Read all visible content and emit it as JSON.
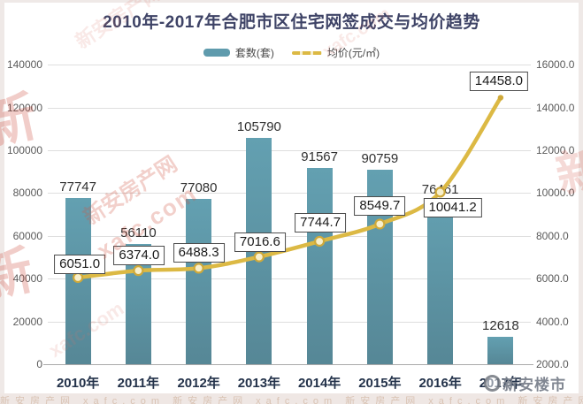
{
  "chart_data": {
    "type": "bar",
    "combo": "bar+line",
    "title": "2010年-2017年合肥市区住宅网签成交与均价趋势",
    "categories": [
      "2010年",
      "2011年",
      "2012年",
      "2013年",
      "2014年",
      "2015年",
      "2016年",
      "2017年"
    ],
    "series": [
      {
        "name": "套数(套)",
        "type": "bar",
        "axis": "left",
        "values": [
          77747,
          56110,
          77080,
          105790,
          91567,
          90759,
          76461,
          12618
        ],
        "labels": [
          "77747",
          "56110",
          "77080",
          "105790",
          "91567",
          "90759",
          "76461",
          "12618"
        ],
        "color": "#5f9bad"
      },
      {
        "name": "均价(元/㎡)",
        "type": "line",
        "axis": "right",
        "values": [
          6051.0,
          6374.0,
          6488.3,
          7016.6,
          7744.7,
          8549.7,
          10041.2,
          14458.0
        ],
        "labels": [
          "6051.0",
          "6374.0",
          "6488.3",
          "7016.6",
          "7744.7",
          "8549.7",
          "10041.2",
          "14458.0"
        ],
        "color": "#dcb944"
      }
    ],
    "left_axis": {
      "min": 0,
      "max": 140000,
      "step": 20000,
      "ticks": [
        "0",
        "20000",
        "40000",
        "60000",
        "80000",
        "100000",
        "120000",
        "140000"
      ]
    },
    "right_axis": {
      "min": 2000,
      "max": 16000,
      "step": 2000,
      "ticks": [
        "2000.0",
        "4000.0",
        "6000.0",
        "8000.0",
        "10000.0",
        "12000.0",
        "14000.0",
        "16000.0"
      ]
    },
    "legend_position": "top",
    "grid": true
  },
  "watermark": {
    "site_name": "新安房产网",
    "site_url": "xafc.com",
    "footer_brand": "新安楼市",
    "logo_char": "新",
    "strip_tile": "新安房产网 xafc.com 新安房产网 xafc.com 新安房产网 xafc.com 新安房产网 xafc.com 新安房产网"
  },
  "colors": {
    "bar": "#5f9bad",
    "line": "#dcb944",
    "title": "#3e4366",
    "grid": "#dedede",
    "axis_text": "#5a5a5a",
    "x_label": "#23324a",
    "watermark_red": "#d25546"
  }
}
